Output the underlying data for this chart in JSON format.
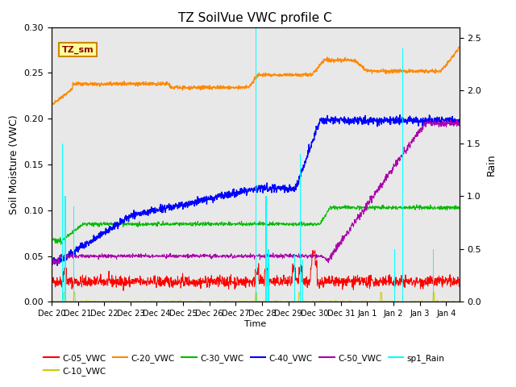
{
  "title": "TZ SoilVue VWC profile C",
  "xlabel": "Time",
  "ylabel_left": "Soil Moisture (VWC)",
  "ylabel_right": "Rain",
  "xlim_days": [
    0,
    15.5
  ],
  "ylim_left": [
    0.0,
    0.3
  ],
  "ylim_right": [
    0.0,
    2.6
  ],
  "x_tick_labels": [
    "Dec 20",
    "Dec 21",
    "Dec 22",
    "Dec 23",
    "Dec 24",
    "Dec 25",
    "Dec 26",
    "Dec 27",
    "Dec 28",
    "Dec 29",
    "Dec 30",
    "Dec 31",
    "Jan 1",
    "Jan 2",
    "Jan 3",
    "Jan 4"
  ],
  "colors": {
    "C05": "#ff0000",
    "C10": "#cccc00",
    "C20": "#ff8800",
    "C30": "#00bb00",
    "C40": "#0000ff",
    "C50": "#aa00aa",
    "rain": "#00ffff"
  },
  "background_color": "#e8e8e8",
  "legend_box_color": "#ffff99",
  "legend_box_text": "TZ_sm"
}
